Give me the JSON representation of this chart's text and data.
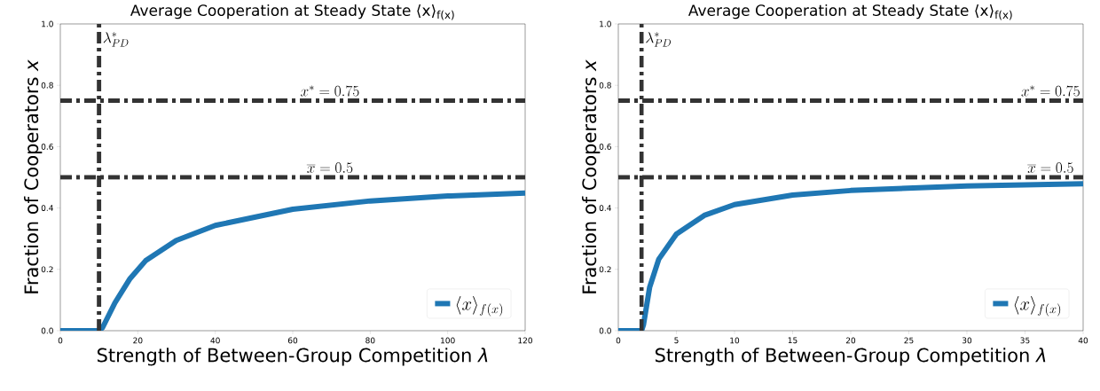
{
  "chart_data": [
    {
      "type": "line",
      "title": "Average Cooperation at Steady State ⟨x⟩$_{f(x)}$",
      "xlabel": "Strength of Between-Group Competition *λ*",
      "ylabel": "Fraction of Cooperators *x*",
      "xlim": [
        0,
        120
      ],
      "ylim": [
        0,
        1
      ],
      "xticks": [
        0,
        20,
        40,
        60,
        80,
        100,
        120
      ],
      "yticks": [
        {
          "value": 0,
          "label": "0.0"
        },
        {
          "value": 0.2,
          "label": "0.2"
        },
        {
          "value": 0.4,
          "label": "0.4"
        },
        {
          "value": 0.6,
          "label": "0.6"
        },
        {
          "value": 0.8,
          "label": "0.8"
        },
        {
          "value": 1,
          "label": "1.0"
        }
      ],
      "series": [
        {
          "name": "\\langle x\\rangle_{f(x)}",
          "color": "#1f77b4",
          "x": [
            0,
            10,
            10.9,
            14.1,
            18,
            22,
            29.9,
            40,
            60,
            80,
            100,
            120
          ],
          "values": [
            0,
            0,
            0.01,
            0.091,
            0.17,
            0.228,
            0.294,
            0.343,
            0.396,
            0.423,
            0.439,
            0.449
          ]
        }
      ],
      "ref_lines": [
        {
          "axis": "x",
          "value": 10,
          "label": "\\lambda^*_{PD}",
          "color": "#333333",
          "line_style": "dashdot"
        },
        {
          "axis": "y",
          "value": 0.75,
          "label": "x^* = 0.75",
          "color": "#333333",
          "line_style": "dashdot"
        },
        {
          "axis": "y",
          "value": 0.5,
          "label": "\\overline{x} = 0.5",
          "color": "#333333",
          "line_style": "dashdot"
        }
      ],
      "legend": "bottom right",
      "grid": false
    },
    {
      "type": "line",
      "title": "Average Cooperation at Steady State ⟨x⟩$_{f(x)}$",
      "xlabel": "Strength of Between-Group Competition *λ*",
      "ylabel": "Fraction of Cooperators *x*",
      "xlim": [
        0,
        40
      ],
      "ylim": [
        0,
        1
      ],
      "xticks": [
        0,
        5,
        10,
        15,
        20,
        25,
        30,
        35,
        40
      ],
      "yticks": [
        {
          "value": 0,
          "label": "0.0"
        },
        {
          "value": 0.2,
          "label": "0.2"
        },
        {
          "value": 0.4,
          "label": "0.4"
        },
        {
          "value": 0.6,
          "label": "0.6"
        },
        {
          "value": 0.8,
          "label": "0.8"
        },
        {
          "value": 1,
          "label": "1.0"
        }
      ],
      "series": [
        {
          "name": "\\langle x\\rangle_{f(x)}",
          "color": "#1f77b4",
          "x": [
            0,
            2,
            2.17,
            2.7,
            3.48,
            5,
            7.4,
            10,
            15,
            20,
            30,
            40
          ],
          "values": [
            0,
            0,
            0.02,
            0.142,
            0.233,
            0.315,
            0.376,
            0.411,
            0.442,
            0.457,
            0.472,
            0.479
          ]
        }
      ],
      "ref_lines": [
        {
          "axis": "x",
          "value": 2,
          "label": "\\lambda^*_{PD}",
          "color": "#333333",
          "line_style": "dashdot"
        },
        {
          "axis": "y",
          "value": 0.75,
          "label": "x^* = 0.75",
          "color": "#333333",
          "line_style": "dashdot"
        },
        {
          "axis": "y",
          "value": 0.5,
          "label": "\\overline{x} = 0.5",
          "color": "#333333",
          "line_style": "dashdot"
        }
      ],
      "legend": "bottom right",
      "grid": false
    }
  ]
}
